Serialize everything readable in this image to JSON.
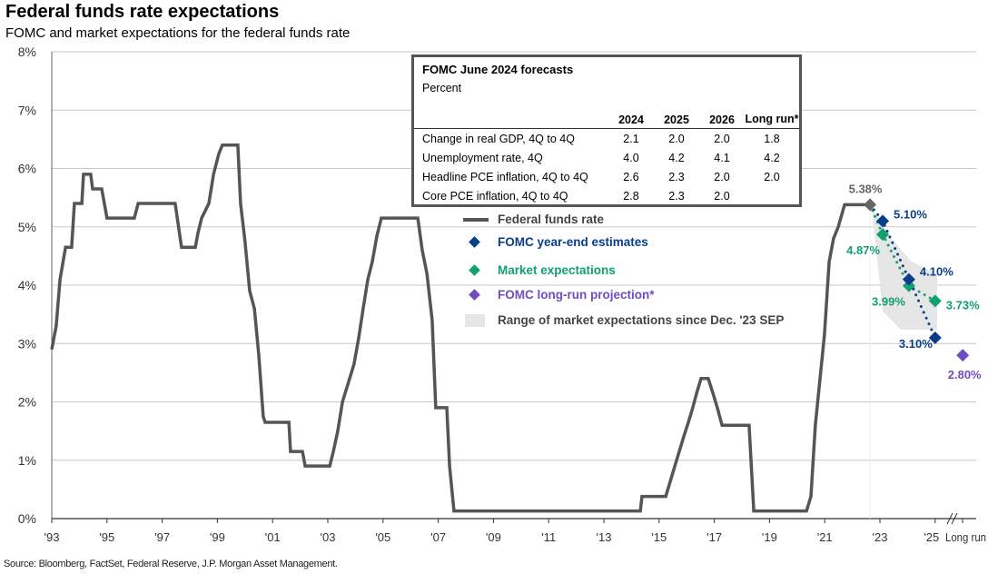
{
  "title": "Federal funds rate expectations",
  "subtitle": "FOMC and market expectations for the federal funds rate",
  "source": "Source: Bloomberg, FactSet, Federal Reserve, J.P. Morgan Asset Management.",
  "table": {
    "title": "FOMC June 2024 forecasts",
    "unit": "Percent",
    "headers": [
      "",
      "2024",
      "2025",
      "2026",
      "Long run*"
    ],
    "rows": [
      [
        "Change in real GDP, 4Q to 4Q",
        "2.1",
        "2.0",
        "2.0",
        "1.8"
      ],
      [
        "Unemployment rate, 4Q",
        "4.0",
        "4.2",
        "4.1",
        "4.2"
      ],
      [
        "Headline PCE inflation, 4Q to 4Q",
        "2.6",
        "2.3",
        "2.0",
        "2.0"
      ],
      [
        "Core PCE inflation, 4Q to 4Q",
        "2.8",
        "2.3",
        "2.0",
        ""
      ]
    ]
  },
  "legend": [
    "Federal funds rate",
    "FOMC year-end estimates",
    "Market expectations",
    "FOMC long-run projection*",
    "Range of market expectations since Dec. '23 SEP"
  ],
  "colors": {
    "ffr": "#555555",
    "fomc": "#0b3e8a",
    "market": "#12a070",
    "longrun": "#6f4cc3",
    "range": "#e6e6e6",
    "grid": "#c8c8c8"
  },
  "chart_data": {
    "type": "line",
    "title": "Federal funds rate expectations",
    "ylabel": "",
    "xlabel": "",
    "ylim": [
      0,
      8
    ],
    "yticks": [
      "0%",
      "1%",
      "2%",
      "3%",
      "4%",
      "5%",
      "6%",
      "7%",
      "8%"
    ],
    "xticks": [
      "'93",
      "'95",
      "'97",
      "'99",
      "'01",
      "'03",
      "'05",
      "'07",
      "'09",
      "'11",
      "'13",
      "'15",
      "'17",
      "'19",
      "'21",
      "'23",
      "'25",
      "Long run"
    ],
    "xlim": [
      1993,
      2026.4
    ],
    "federal_funds_rate": [
      [
        1993.0,
        2.9
      ],
      [
        1993.16,
        3.3
      ],
      [
        1993.3,
        4.1
      ],
      [
        1993.5,
        4.65
      ],
      [
        1993.72,
        4.65
      ],
      [
        1993.82,
        5.4
      ],
      [
        1994.09,
        5.4
      ],
      [
        1994.15,
        5.9
      ],
      [
        1994.41,
        5.9
      ],
      [
        1994.48,
        5.65
      ],
      [
        1994.81,
        5.65
      ],
      [
        1995.0,
        5.15
      ],
      [
        1995.99,
        5.15
      ],
      [
        1996.13,
        5.4
      ],
      [
        1997.47,
        5.4
      ],
      [
        1997.7,
        4.65
      ],
      [
        1998.2,
        4.65
      ],
      [
        1998.3,
        4.9
      ],
      [
        1998.43,
        5.15
      ],
      [
        1998.69,
        5.4
      ],
      [
        1998.86,
        5.9
      ],
      [
        1999.05,
        6.25
      ],
      [
        1999.18,
        6.4
      ],
      [
        1999.74,
        6.4
      ],
      [
        1999.84,
        5.4
      ],
      [
        2000.0,
        4.75
      ],
      [
        2000.17,
        3.9
      ],
      [
        2000.34,
        3.6
      ],
      [
        2000.5,
        2.8
      ],
      [
        2000.66,
        1.75
      ],
      [
        2000.73,
        1.65
      ],
      [
        2001.59,
        1.65
      ],
      [
        2001.65,
        1.15
      ],
      [
        2002.08,
        1.15
      ],
      [
        2002.18,
        0.9
      ],
      [
        2003.07,
        0.9
      ],
      [
        2003.2,
        1.15
      ],
      [
        2003.36,
        1.5
      ],
      [
        2003.53,
        2.0
      ],
      [
        2003.79,
        2.4
      ],
      [
        2003.95,
        2.65
      ],
      [
        2004.12,
        3.1
      ],
      [
        2004.28,
        3.6
      ],
      [
        2004.45,
        4.1
      ],
      [
        2004.61,
        4.4
      ],
      [
        2004.78,
        4.85
      ],
      [
        2004.94,
        5.15
      ],
      [
        2006.26,
        5.15
      ],
      [
        2006.42,
        4.6
      ],
      [
        2006.59,
        4.2
      ],
      [
        2006.78,
        3.4
      ],
      [
        2006.91,
        1.9
      ],
      [
        2007.31,
        1.9
      ],
      [
        2007.41,
        0.9
      ],
      [
        2007.57,
        0.13
      ],
      [
        2014.32,
        0.13
      ],
      [
        2014.38,
        0.38
      ],
      [
        2015.24,
        0.38
      ],
      [
        2015.4,
        0.63
      ],
      [
        2015.57,
        0.9
      ],
      [
        2015.73,
        1.15
      ],
      [
        2015.89,
        1.4
      ],
      [
        2016.06,
        1.65
      ],
      [
        2016.22,
        1.9
      ],
      [
        2016.36,
        2.15
      ],
      [
        2016.52,
        2.4
      ],
      [
        2016.78,
        2.4
      ],
      [
        2016.95,
        2.15
      ],
      [
        2017.11,
        1.9
      ],
      [
        2017.28,
        1.6
      ],
      [
        2018.26,
        1.6
      ],
      [
        2018.43,
        0.13
      ],
      [
        2020.34,
        0.13
      ],
      [
        2020.5,
        0.38
      ],
      [
        2020.66,
        1.6
      ],
      [
        2020.83,
        2.4
      ],
      [
        2020.99,
        3.15
      ],
      [
        2021.16,
        4.4
      ],
      [
        2021.32,
        4.8
      ],
      [
        2021.49,
        5.0
      ],
      [
        2021.72,
        5.38
      ],
      [
        2022.64,
        5.38
      ]
    ],
    "last_actual": {
      "x": 2022.64,
      "y": 5.38,
      "label": "5.38%"
    },
    "fomc_year_end": [
      {
        "x": 2023.1,
        "y": 5.1,
        "label": "5.10%"
      },
      {
        "x": 2024.05,
        "y": 4.1,
        "label": "4.10%"
      },
      {
        "x": 2025.0,
        "y": 3.1,
        "label": "3.10%"
      }
    ],
    "market_expectations": [
      {
        "x": 2023.1,
        "y": 4.87,
        "label": "4.87%"
      },
      {
        "x": 2024.05,
        "y": 3.99,
        "label": "3.99%"
      },
      {
        "x": 2025.0,
        "y": 3.73,
        "label": "3.73%"
      }
    ],
    "fomc_long_run": {
      "x": 2026.0,
      "y": 2.8,
      "label": "2.80%"
    },
    "range_polygon": [
      [
        2022.7,
        5.34
      ],
      [
        2023.36,
        4.84
      ],
      [
        2024.1,
        4.42
      ],
      [
        2025.07,
        4.19
      ],
      [
        2025.07,
        3.24
      ],
      [
        2023.76,
        3.24
      ],
      [
        2023.1,
        3.55
      ]
    ]
  }
}
